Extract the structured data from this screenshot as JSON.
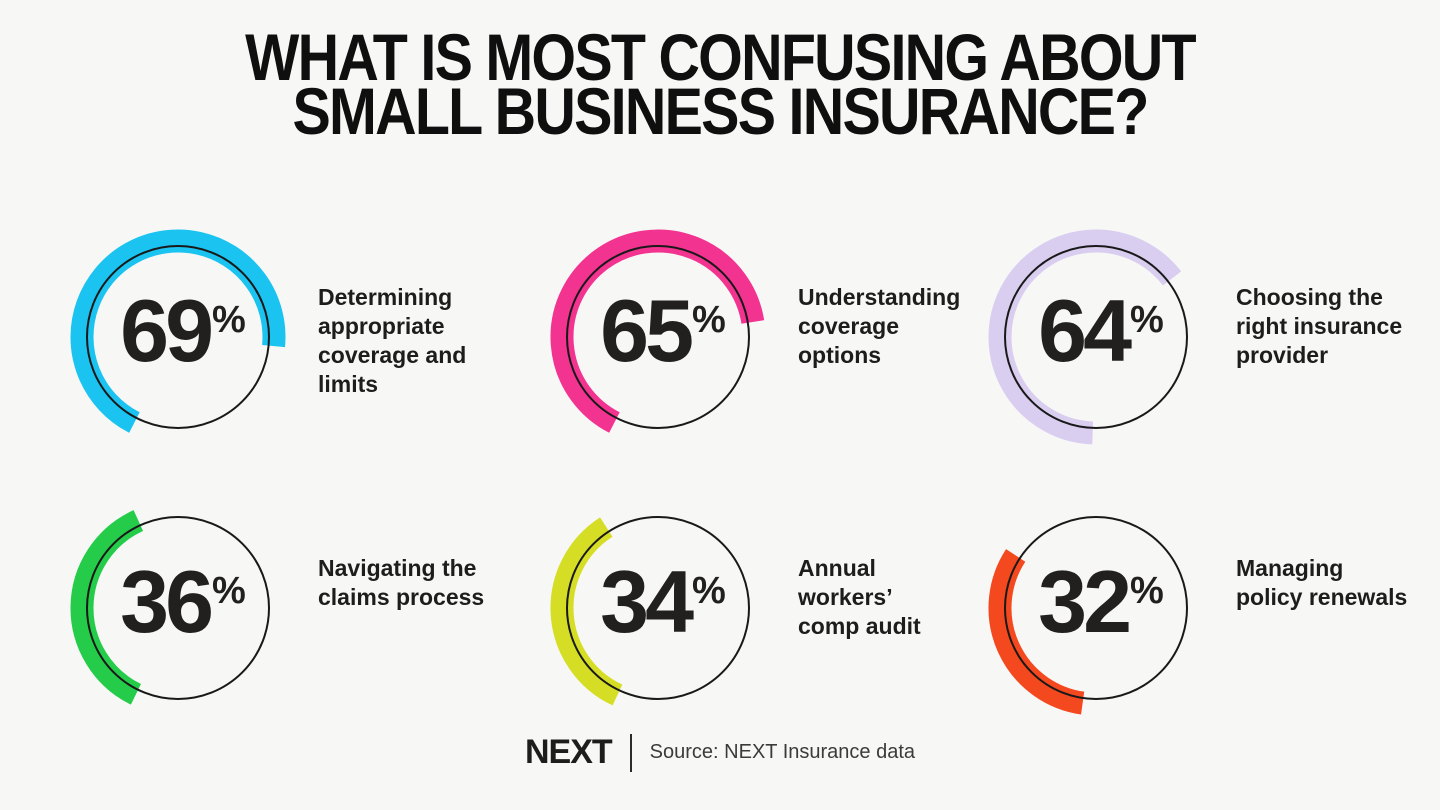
{
  "title": {
    "line1": "WHAT IS MOST CONFUSING ABOUT",
    "line2": "SMALL BUSINESS INSURANCE?"
  },
  "chart_data": {
    "type": "pie",
    "subtype": "donut-ring-stats",
    "title": "What is most confusing about small business insurance?",
    "unit": "%",
    "legend": "none",
    "items": [
      {
        "label": "Determining appropriate coverage and limits",
        "label_lines": [
          "Determining",
          "appropriate",
          "coverage and",
          "limits"
        ],
        "value": 69,
        "color": "#1ac3f0"
      },
      {
        "label": "Understanding coverage options",
        "label_lines": [
          "Understanding",
          "coverage",
          "options"
        ],
        "value": 65,
        "color": "#f23390"
      },
      {
        "label": "Choosing the right insurance provider",
        "label_lines": [
          "Choosing the",
          "right insurance",
          "provider"
        ],
        "value": 64,
        "color": "#d9cef0"
      },
      {
        "label": "Navigating the claims process",
        "label_lines": [
          "Navigating the",
          "claims process"
        ],
        "value": 36,
        "color": "#25cc49"
      },
      {
        "label": "Annual workers’ comp audit",
        "label_lines": [
          "Annual",
          "workers’",
          "comp audit"
        ],
        "value": 34,
        "color": "#d5de25"
      },
      {
        "label": "Managing policy renewals",
        "label_lines": [
          "Managing",
          "policy renewals"
        ],
        "value": 32,
        "color": "#f4481e"
      }
    ]
  },
  "footer": {
    "logo": "NEXT",
    "source": "Source: NEXT Insurance data"
  }
}
